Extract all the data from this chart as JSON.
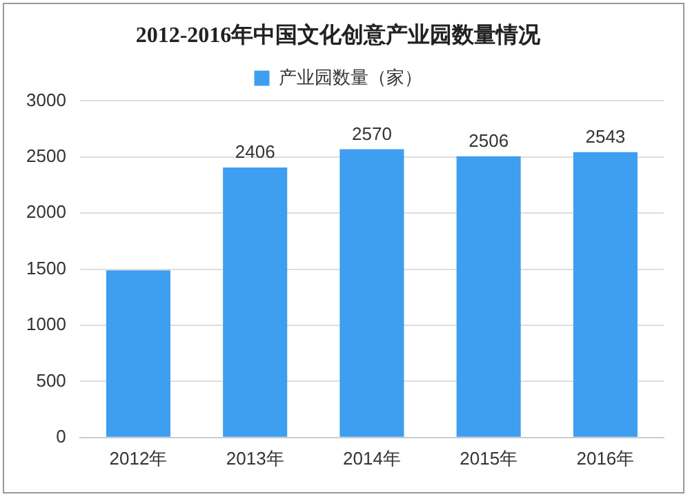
{
  "chart_data": {
    "type": "bar",
    "title": "2012-2016年中国文化创意产业园数量情况",
    "categories": [
      "2012年",
      "2013年",
      "2014年",
      "2015年",
      "2016年"
    ],
    "series": [
      {
        "name": "产业园数量（家）",
        "color": "#3e9ef0",
        "values": [
          1490,
          2406,
          2570,
          2506,
          2543
        ],
        "value_labels": [
          null,
          "2406",
          "2570",
          "2506",
          "2543"
        ]
      }
    ],
    "ylim": [
      0,
      3000
    ],
    "yticks": [
      0,
      500,
      1000,
      1500,
      2000,
      2500,
      3000
    ],
    "grid": "y",
    "legend": "top"
  }
}
